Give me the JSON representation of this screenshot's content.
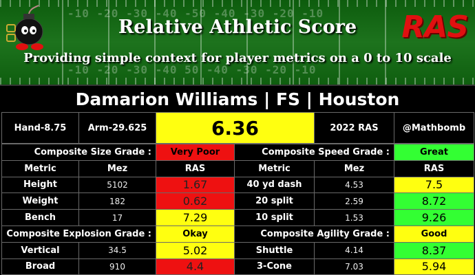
{
  "banner": {
    "title": "Relative Athletic Score",
    "subtitle": "Providing simple context for player metrics on a 0 to 10 scale",
    "logo": "RAS",
    "yard_numbers_top": "-10 -20 -30 -40 -50 -40 -30 -20 -10",
    "yard_numbers_bottom": "-10 -20 -30 -40 50 -40 -30 -20 -10",
    "field_color": "#1d731d",
    "logo_color": "#e01010"
  },
  "player": {
    "name_line": "Damarion Williams | FS | Houston"
  },
  "info": {
    "hand": "Hand-8.75",
    "arm": "Arm-29.625",
    "score": "6.36",
    "year": "2022 RAS",
    "handle": "@Mathbomb"
  },
  "headers": {
    "metric": "Metric",
    "mez": "Mez",
    "ras": "RAS"
  },
  "grades": {
    "size_label": "Composite Size Grade :",
    "size_value": "Very Poor",
    "speed_label": "Composite Speed Grade :",
    "speed_value": "Great",
    "explosion_label": "Composite Explosion Grade :",
    "explosion_value": "Okay",
    "agility_label": "Composite Agility Grade :",
    "agility_value": "Good"
  },
  "size_metrics": [
    {
      "metric": "Height",
      "mez": "5102",
      "ras": "1.67",
      "color": "#ee1111"
    },
    {
      "metric": "Weight",
      "mez": "182",
      "ras": "0.62",
      "color": "#ee1111"
    },
    {
      "metric": "Bench",
      "mez": "17",
      "ras": "7.29",
      "color": "#ffff10"
    }
  ],
  "speed_metrics": [
    {
      "metric": "40 yd dash",
      "mez": "4.53",
      "ras": "7.5",
      "color": "#ffff10"
    },
    {
      "metric": "20 split",
      "mez": "2.59",
      "ras": "8.72",
      "color": "#33ff33"
    },
    {
      "metric": "10 split",
      "mez": "1.53",
      "ras": "9.26",
      "color": "#33ff33"
    }
  ],
  "explosion_metrics": [
    {
      "metric": "Vertical",
      "mez": "34.5",
      "ras": "5.02",
      "color": "#ffff10"
    },
    {
      "metric": "Broad",
      "mez": "910",
      "ras": "4.4",
      "color": "#ee1111"
    }
  ],
  "agility_metrics": [
    {
      "metric": "Shuttle",
      "mez": "4.14",
      "ras": "8.37",
      "color": "#33ff33"
    },
    {
      "metric": "3-Cone",
      "mez": "7.03",
      "ras": "5.94",
      "color": "#ffff10"
    }
  ]
}
